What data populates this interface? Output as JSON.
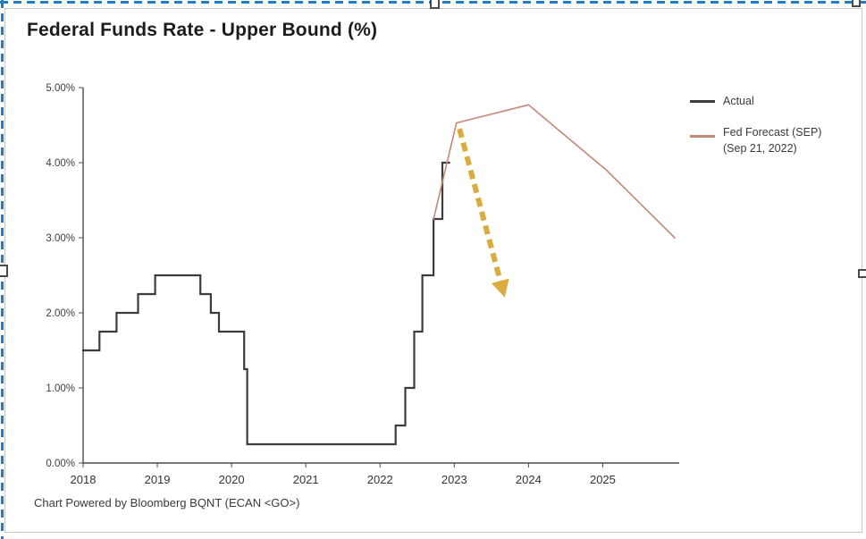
{
  "selection": {
    "border_color": "#1e7ec9",
    "handle_color": "#4a4a4a",
    "frame_border_color": "#c6c6c6"
  },
  "chart": {
    "title": "Federal Funds Rate - Upper Bound (%)",
    "footer": "Chart Powered by Bloomberg BQNT (ECAN <GO>)"
  },
  "legend": {
    "items": [
      {
        "label": "Actual",
        "color": "#3c3c3c"
      },
      {
        "label": "Fed Forecast (SEP)",
        "sublabel": "(Sep 21, 2022)",
        "color": "#c38878"
      }
    ]
  },
  "chart_data": {
    "type": "line",
    "title": "Federal Funds Rate - Upper Bound (%)",
    "xlabel": "",
    "ylabel": "",
    "xlim": [
      2018,
      2026.03
    ],
    "ylim": [
      0,
      5
    ],
    "grid": false,
    "legend_position": "right",
    "x_ticks": [
      2018,
      2019,
      2020,
      2021,
      2022,
      2023,
      2024,
      2025
    ],
    "y_ticks": [
      0,
      1,
      2,
      3,
      4,
      5
    ],
    "y_tick_labels": [
      "0.00%",
      "1.00%",
      "2.00%",
      "3.00%",
      "4.00%",
      "5.00%"
    ],
    "series": [
      {
        "id": "actual",
        "name": "Actual",
        "interpolation": "step-after",
        "color": "#3c3c3c",
        "width": 2.2,
        "points": [
          [
            2018.0,
            1.5
          ],
          [
            2018.22,
            1.75
          ],
          [
            2018.45,
            2.0
          ],
          [
            2018.74,
            2.25
          ],
          [
            2018.97,
            2.5
          ],
          [
            2019.58,
            2.25
          ],
          [
            2019.72,
            2.0
          ],
          [
            2019.83,
            1.75
          ],
          [
            2020.17,
            1.25
          ],
          [
            2020.21,
            0.25
          ],
          [
            2022.21,
            0.5
          ],
          [
            2022.34,
            1.0
          ],
          [
            2022.46,
            1.75
          ],
          [
            2022.57,
            2.5
          ],
          [
            2022.72,
            3.25
          ],
          [
            2022.84,
            4.0
          ],
          [
            2022.93,
            4.0
          ]
        ]
      },
      {
        "id": "fed-forecast-sep",
        "name": "Fed Forecast (SEP) (Sep 21, 2022)",
        "interpolation": "linear",
        "color": "#c38878",
        "width": 1.6,
        "points": [
          [
            2022.72,
            3.25
          ],
          [
            2023.03,
            4.53
          ],
          [
            2024.0,
            4.77
          ],
          [
            2025.05,
            3.9
          ],
          [
            2025.97,
            3.0
          ]
        ]
      }
    ],
    "annotation_arrow": {
      "description": "dashed yellow arrow from forecast peak down to about 2.1% in late 2023",
      "from": [
        2023.07,
        4.45
      ],
      "to": [
        2023.64,
        2.35
      ],
      "color": "#d7a42e",
      "style": "dashed"
    }
  }
}
